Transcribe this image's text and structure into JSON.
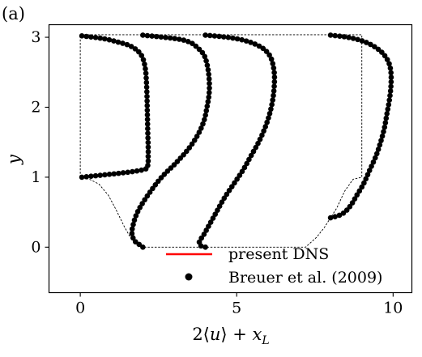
{
  "chart_data": {
    "type": "line+scatter",
    "panel_label": "(a)",
    "xlabel": "2⟨u⟩ + x_L",
    "ylabel": "y",
    "xlim": [
      -1,
      10.6
    ],
    "ylim": [
      -0.65,
      3.18
    ],
    "xticks": [
      0,
      5,
      10
    ],
    "yticks": [
      0,
      1,
      2,
      3
    ],
    "grid": false,
    "legend": {
      "placement": "bottom-right",
      "entries": [
        {
          "label": "present DNS",
          "style": "line",
          "color": "#ff0000"
        },
        {
          "label": "Breuer et al. (2009)",
          "style": "marker",
          "color": "#000000"
        }
      ]
    },
    "geometry_outline": {
      "style": "dashed",
      "points": [
        [
          0,
          1
        ],
        [
          0,
          3.036
        ],
        [
          9,
          3.036
        ],
        [
          9,
          1
        ],
        [
          8.72,
          0.97
        ],
        [
          8.45,
          0.8
        ],
        [
          8.2,
          0.56
        ],
        [
          8.0,
          0.42
        ],
        [
          7.8,
          0.28
        ],
        [
          7.55,
          0.14
        ],
        [
          7.2,
          0.0
        ],
        [
          1.93,
          0.0
        ],
        [
          1.6,
          0.14
        ],
        [
          1.4,
          0.3
        ],
        [
          1.15,
          0.53
        ],
        [
          0.9,
          0.74
        ],
        [
          0.6,
          0.9
        ],
        [
          0.3,
          0.97
        ],
        [
          0,
          1
        ]
      ]
    },
    "series": [
      {
        "name": "present DNS",
        "color": "#ff0000",
        "profiles": [
          {
            "x_L": 0.05,
            "y": [
              1.0,
              1.1,
              1.2,
              1.3,
              1.45,
              1.6,
              1.8,
              2.0,
              2.2,
              2.4,
              2.55,
              2.7,
              2.8,
              2.88,
              2.93,
              2.98,
              3.02
            ],
            "x": [
              0.05,
              1.95,
              2.15,
              2.17,
              2.17,
              2.16,
              2.15,
              2.14,
              2.13,
              2.11,
              2.08,
              2.0,
              1.85,
              1.58,
              1.22,
              0.75,
              0.05
            ]
          },
          {
            "x_L": 2.0,
            "y": [
              0.0,
              0.05,
              0.1,
              0.2,
              0.3,
              0.45,
              0.6,
              0.8,
              1.0,
              1.2,
              1.4,
              1.6,
              1.8,
              2.0,
              2.2,
              2.4,
              2.6,
              2.75,
              2.85,
              2.93,
              2.98,
              3.03
            ],
            "x": [
              2.0,
              1.85,
              1.72,
              1.65,
              1.68,
              1.78,
              1.95,
              2.25,
              2.6,
              3.05,
              3.45,
              3.75,
              3.95,
              4.05,
              4.12,
              4.12,
              4.06,
              3.95,
              3.75,
              3.5,
              3.05,
              2.0
            ]
          },
          {
            "x_L": 4.0,
            "y": [
              0.0,
              0.02,
              0.05,
              0.1,
              0.18,
              0.3,
              0.5,
              0.7,
              0.9,
              1.1,
              1.3,
              1.5,
              1.7,
              1.9,
              2.1,
              2.3,
              2.5,
              2.7,
              2.82,
              2.9,
              2.96,
              3.0,
              3.03
            ],
            "x": [
              4.0,
              3.85,
              3.8,
              3.83,
              3.95,
              4.1,
              4.35,
              4.6,
              4.9,
              5.2,
              5.45,
              5.7,
              5.9,
              6.05,
              6.15,
              6.2,
              6.2,
              6.1,
              5.9,
              5.6,
              5.2,
              4.7,
              4.0
            ]
          },
          {
            "x_L": 8.0,
            "y": [
              0.42,
              0.45,
              0.5,
              0.6,
              0.75,
              0.9,
              1.1,
              1.3,
              1.5,
              1.7,
              1.9,
              2.1,
              2.3,
              2.5,
              2.65,
              2.78,
              2.88,
              2.95,
              3.0,
              3.03
            ],
            "x": [
              8.0,
              8.25,
              8.45,
              8.65,
              8.85,
              9.05,
              9.25,
              9.45,
              9.6,
              9.72,
              9.8,
              9.88,
              9.93,
              9.93,
              9.85,
              9.65,
              9.35,
              9.0,
              8.55,
              8.0
            ]
          }
        ]
      },
      {
        "name": "Breuer et al. (2009)",
        "color": "#000000",
        "marker": "circle",
        "same_as": "present DNS",
        "dense_markers": true
      }
    ]
  }
}
